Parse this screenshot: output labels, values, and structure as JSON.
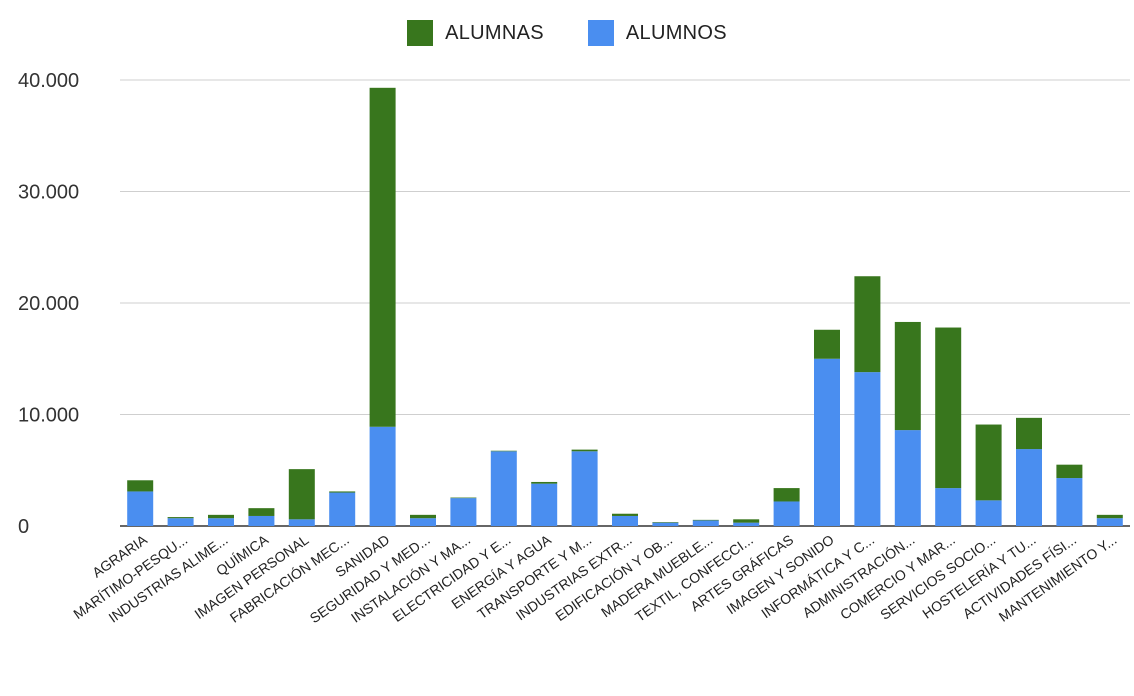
{
  "chart_data": {
    "type": "bar",
    "stacked": true,
    "title": "",
    "xlabel": "",
    "ylabel": "",
    "ylim": [
      0,
      40000
    ],
    "yticks": [
      0,
      10000,
      20000,
      30000,
      40000
    ],
    "ytick_labels": [
      "0",
      "10.000",
      "20.000",
      "30.000",
      "40.000"
    ],
    "grid": true,
    "legend_position": "top",
    "categories": [
      "AGRARIA",
      "MARÍTIMO-PESQU...",
      "INDUSTRIAS ALIME...",
      "QUÍMICA",
      "IMAGEN PERSONAL",
      "FABRICACIÓN MEC...",
      "SANIDAD",
      "SEGURIDAD Y MED...",
      "INSTALACIÓN Y MA...",
      "ELECTRICIDAD Y E...",
      "ENERGÍA Y AGUA",
      "TRANSPORTE Y M...",
      "INDUSTRIAS EXTR...",
      "EDIFICACIÓN Y OB...",
      "MADERA MUEBLE...",
      "TEXTIL, CONFECCI...",
      "ARTES GRÁFICAS",
      "IMAGEN Y SONIDO",
      "INFORMÁTICA Y C...",
      "ADMINISTRACIÓN...",
      "COMERCIO Y MAR...",
      "SERVICIOS SOCIO...",
      "HOSTELERÍA Y TU...",
      "ACTIVIDADES FÍSI...",
      "MANTENIMIENTO Y..."
    ],
    "series": [
      {
        "name": "ALUMNOS",
        "color": "#4a8ef0",
        "values": [
          3100,
          700,
          700,
          900,
          600,
          3000,
          8900,
          700,
          2500,
          6700,
          3800,
          6700,
          900,
          300,
          500,
          300,
          2200,
          15000,
          13800,
          8600,
          3400,
          2300,
          6900,
          4300,
          700
        ]
      },
      {
        "name": "ALUMNAS",
        "color": "#38761d",
        "values": [
          1000,
          100,
          300,
          700,
          4500,
          100,
          30400,
          300,
          50,
          50,
          150,
          150,
          200,
          50,
          50,
          300,
          1200,
          2600,
          8600,
          9700,
          14400,
          6800,
          2800,
          1200,
          300
        ]
      }
    ],
    "legend_order": [
      "ALUMNAS",
      "ALUMNOS"
    ]
  }
}
